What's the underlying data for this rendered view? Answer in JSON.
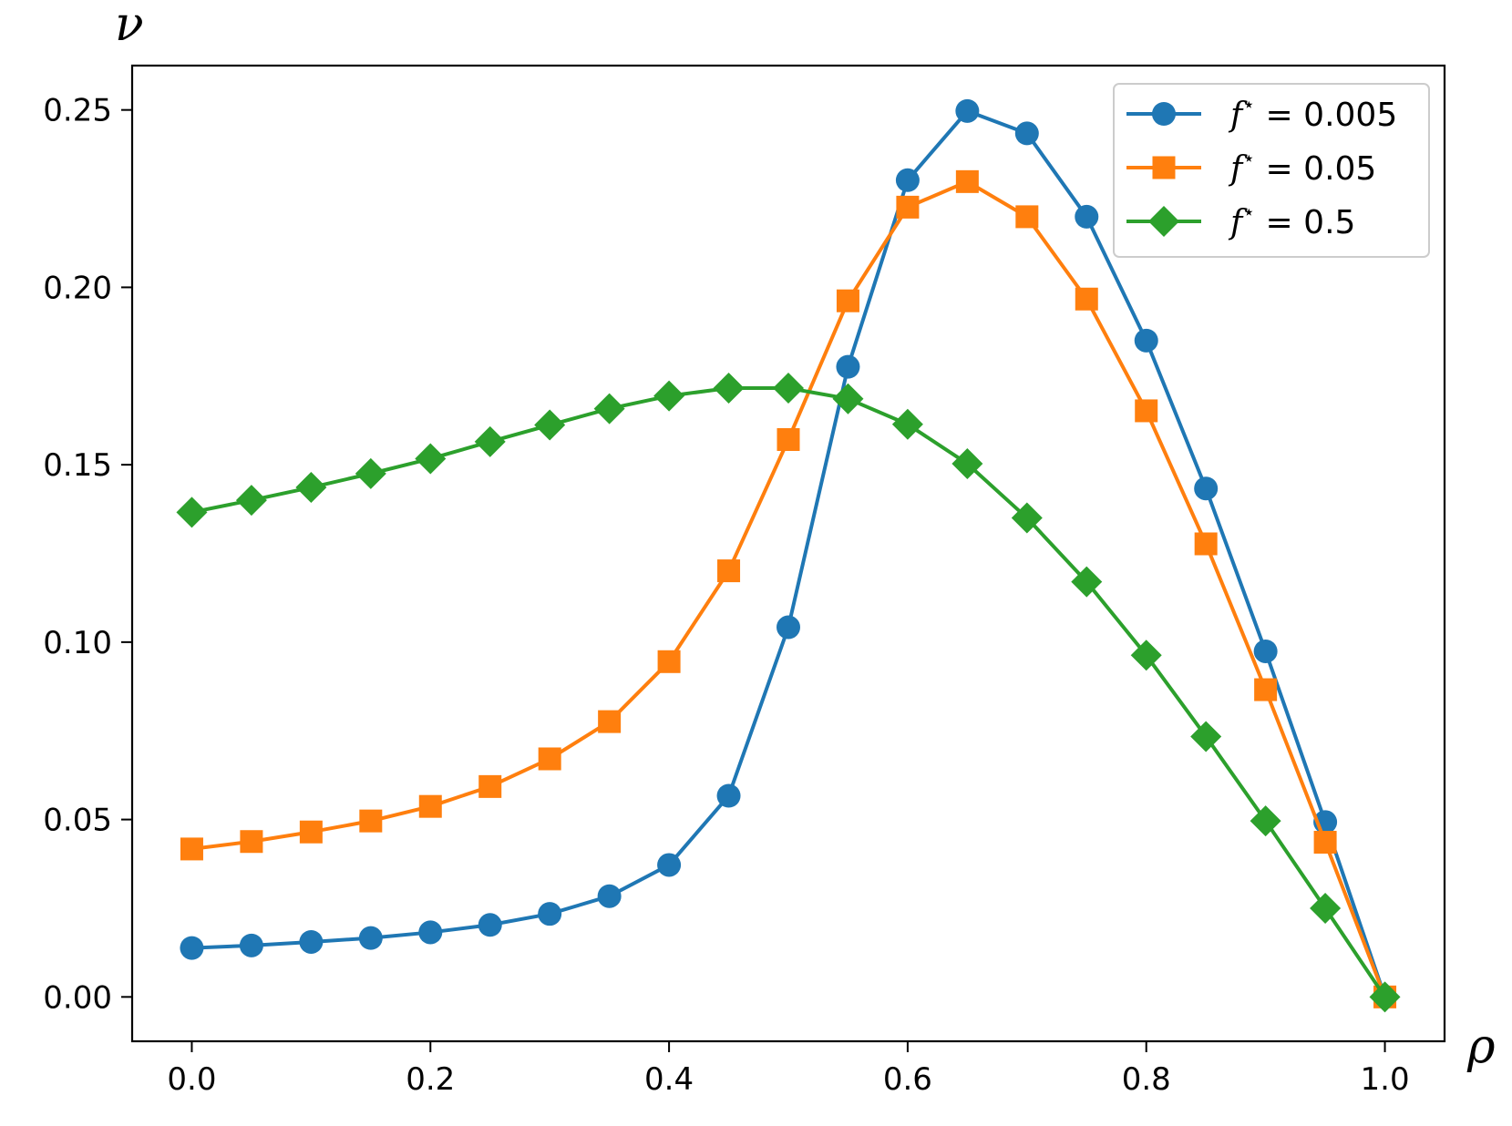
{
  "chart_data": {
    "type": "line",
    "title": "",
    "xlabel": "ρ",
    "ylabel": "ν",
    "xlim": [
      -0.05,
      1.05
    ],
    "ylim": [
      -0.0125,
      0.2625
    ],
    "xticks": [
      0.0,
      0.2,
      0.4,
      0.6,
      0.8,
      1.0
    ],
    "xtick_labels": [
      "0.0",
      "0.2",
      "0.4",
      "0.6",
      "0.8",
      "1.0"
    ],
    "yticks": [
      0.0,
      0.05,
      0.1,
      0.15,
      0.2,
      0.25
    ],
    "ytick_labels": [
      "0.00",
      "0.05",
      "0.10",
      "0.15",
      "0.20",
      "0.25"
    ],
    "grid": false,
    "legend_position": "top-right",
    "x": [
      0.0,
      0.05,
      0.1,
      0.15,
      0.2,
      0.25,
      0.3,
      0.35,
      0.4,
      0.45,
      0.5,
      0.55,
      0.6,
      0.65,
      0.7,
      0.75,
      0.8,
      0.85,
      0.9,
      0.95,
      1.0
    ],
    "series": [
      {
        "name": "f* = 0.005",
        "legend_prefix": "f",
        "legend_sup": "⋆",
        "legend_suffix": " = 0.005",
        "color": "#1f77b4",
        "marker": "circle",
        "values": [
          0.0138,
          0.0145,
          0.0155,
          0.0166,
          0.0182,
          0.0203,
          0.0234,
          0.0284,
          0.0372,
          0.0567,
          0.1042,
          0.1776,
          0.2302,
          0.2497,
          0.2434,
          0.2199,
          0.185,
          0.1433,
          0.0974,
          0.0493,
          0.0
        ]
      },
      {
        "name": "f* = 0.05",
        "legend_prefix": "f",
        "legend_sup": "⋆",
        "legend_suffix": " = 0.05",
        "color": "#ff7f0e",
        "marker": "square",
        "values": [
          0.0417,
          0.0438,
          0.0465,
          0.0496,
          0.0537,
          0.0593,
          0.0671,
          0.0776,
          0.0945,
          0.1201,
          0.1571,
          0.1962,
          0.2226,
          0.2298,
          0.2199,
          0.1967,
          0.1652,
          0.1277,
          0.0866,
          0.0436,
          0.0
        ]
      },
      {
        "name": "f* = 0.5",
        "legend_prefix": "f",
        "legend_sup": "⋆",
        "legend_suffix": " = 0.5",
        "color": "#2ca02c",
        "marker": "diamond",
        "values": [
          0.1366,
          0.14,
          0.1436,
          0.1475,
          0.1517,
          0.1565,
          0.1612,
          0.1658,
          0.1694,
          0.1716,
          0.1716,
          0.1686,
          0.1614,
          0.1503,
          0.135,
          0.117,
          0.0963,
          0.0734,
          0.0496,
          0.025,
          0.0
        ]
      }
    ]
  }
}
